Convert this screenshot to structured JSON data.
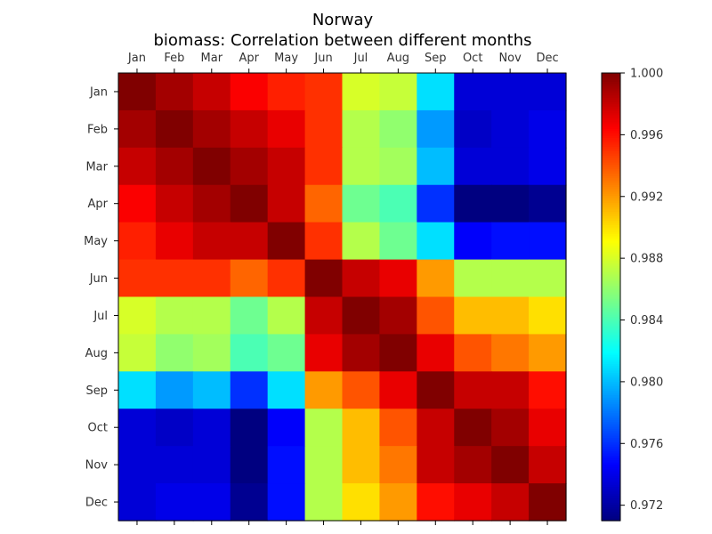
{
  "chart_data": {
    "type": "heatmap",
    "title": "Norway",
    "subtitle": "biomass: Correlation between different months",
    "x_categories": [
      "Jan",
      "Feb",
      "Mar",
      "Apr",
      "May",
      "Jun",
      "Jul",
      "Aug",
      "Sep",
      "Oct",
      "Nov",
      "Dec"
    ],
    "y_categories": [
      "Jan",
      "Feb",
      "Mar",
      "Apr",
      "May",
      "Jun",
      "Jul",
      "Aug",
      "Sep",
      "Oct",
      "Nov",
      "Dec"
    ],
    "colorbar": {
      "min": 0.971,
      "max": 1.0,
      "ticks": [
        "1.000",
        "0.996",
        "0.992",
        "0.988",
        "0.984",
        "0.980",
        "0.976",
        "0.972"
      ],
      "colormap": "jet"
    },
    "values": [
      [
        1.0,
        0.999,
        0.998,
        0.9965,
        0.9955,
        0.995,
        0.988,
        0.9875,
        0.981,
        0.9735,
        0.9735,
        0.9735
      ],
      [
        0.999,
        1.0,
        0.999,
        0.998,
        0.997,
        0.995,
        0.987,
        0.986,
        0.979,
        0.973,
        0.9735,
        0.974
      ],
      [
        0.998,
        0.999,
        1.0,
        0.999,
        0.998,
        0.995,
        0.987,
        0.9865,
        0.98,
        0.9735,
        0.9735,
        0.974
      ],
      [
        0.9965,
        0.998,
        0.999,
        1.0,
        0.998,
        0.9935,
        0.985,
        0.984,
        0.976,
        0.971,
        0.971,
        0.9715
      ],
      [
        0.9955,
        0.997,
        0.998,
        0.998,
        1.0,
        0.995,
        0.987,
        0.985,
        0.981,
        0.9745,
        0.975,
        0.975
      ],
      [
        0.995,
        0.995,
        0.995,
        0.9935,
        0.995,
        1.0,
        0.998,
        0.997,
        0.992,
        0.987,
        0.987,
        0.987
      ],
      [
        0.988,
        0.987,
        0.987,
        0.985,
        0.987,
        0.998,
        1.0,
        0.999,
        0.994,
        0.991,
        0.991,
        0.99
      ],
      [
        0.9875,
        0.986,
        0.9865,
        0.984,
        0.985,
        0.997,
        0.999,
        1.0,
        0.997,
        0.994,
        0.993,
        0.992
      ],
      [
        0.981,
        0.979,
        0.98,
        0.976,
        0.981,
        0.992,
        0.994,
        0.997,
        1.0,
        0.998,
        0.998,
        0.996
      ],
      [
        0.9735,
        0.973,
        0.9735,
        0.971,
        0.9745,
        0.987,
        0.991,
        0.994,
        0.998,
        1.0,
        0.999,
        0.997
      ],
      [
        0.9735,
        0.9735,
        0.9735,
        0.971,
        0.975,
        0.987,
        0.991,
        0.993,
        0.998,
        0.999,
        1.0,
        0.998
      ],
      [
        0.9735,
        0.974,
        0.974,
        0.9715,
        0.975,
        0.987,
        0.99,
        0.992,
        0.996,
        0.997,
        0.998,
        1.0
      ]
    ]
  }
}
